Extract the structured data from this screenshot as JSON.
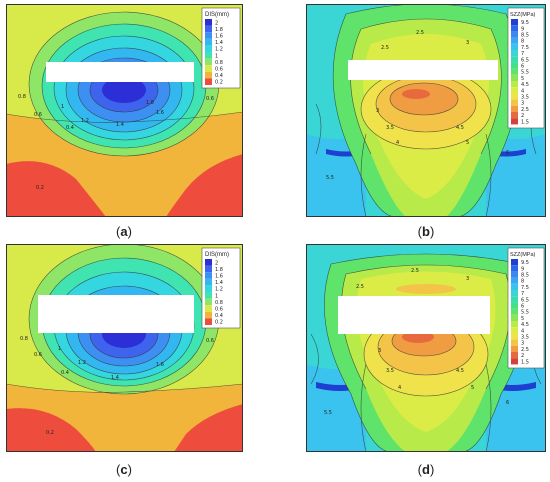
{
  "captions": {
    "a": {
      "open": "(",
      "letter": "a",
      "close": ")"
    },
    "b": {
      "open": "(",
      "letter": "b",
      "close": ")"
    },
    "c": {
      "open": "(",
      "letter": "c",
      "close": ")"
    },
    "d": {
      "open": "(",
      "letter": "d",
      "close": ")"
    }
  },
  "legends": {
    "dis": {
      "title": "DIS(mm)",
      "levels": [
        "2",
        "1.8",
        "1.6",
        "1.4",
        "1.2",
        "1",
        "0.8",
        "0.6",
        "0.4",
        "0.2"
      ],
      "colors": [
        "#2c2fd6",
        "#3e63ec",
        "#3d8ff2",
        "#33b7f0",
        "#34d6df",
        "#3fe4b0",
        "#8fe666",
        "#d8e94a",
        "#f1b53b",
        "#ee4d3e"
      ]
    },
    "szz": {
      "title": "SZZ(MPa)",
      "levels": [
        "9.5",
        "9",
        "8.5",
        "8",
        "7.5",
        "7",
        "6.5",
        "6",
        "5.5",
        "5",
        "4.5",
        "4",
        "3.5",
        "3",
        "2.5",
        "2",
        "1.5"
      ],
      "colors": [
        "#1e3fd0",
        "#2c67ea",
        "#3b89f0",
        "#3aa8f2",
        "#39c3ee",
        "#3ad6d6",
        "#39dcb2",
        "#41e08a",
        "#5fe36a",
        "#8ae653",
        "#b8ea4a",
        "#dcec46",
        "#f0e24a",
        "#f3c447",
        "#f09c43",
        "#e66a3d",
        "#d8403a"
      ]
    }
  },
  "contour_labels": {
    "a": [
      "0.8",
      "0.6",
      "0.4",
      "1",
      "1.2",
      "1.4",
      "0.2",
      "0.6",
      "1.6",
      "1.8"
    ],
    "b": [
      "2.5",
      "3",
      "3.5",
      "4",
      "4.5",
      "5",
      "5.5",
      "6",
      "3",
      "2.5"
    ],
    "c": [
      "0.8",
      "0.6",
      "0.4",
      "1",
      "1.2",
      "1.4",
      "0.2",
      "0.6",
      "1.6"
    ],
    "d": [
      "2.5",
      "3",
      "3.5",
      "4",
      "4.5",
      "5",
      "5.5",
      "6",
      "3",
      "2.5"
    ]
  }
}
